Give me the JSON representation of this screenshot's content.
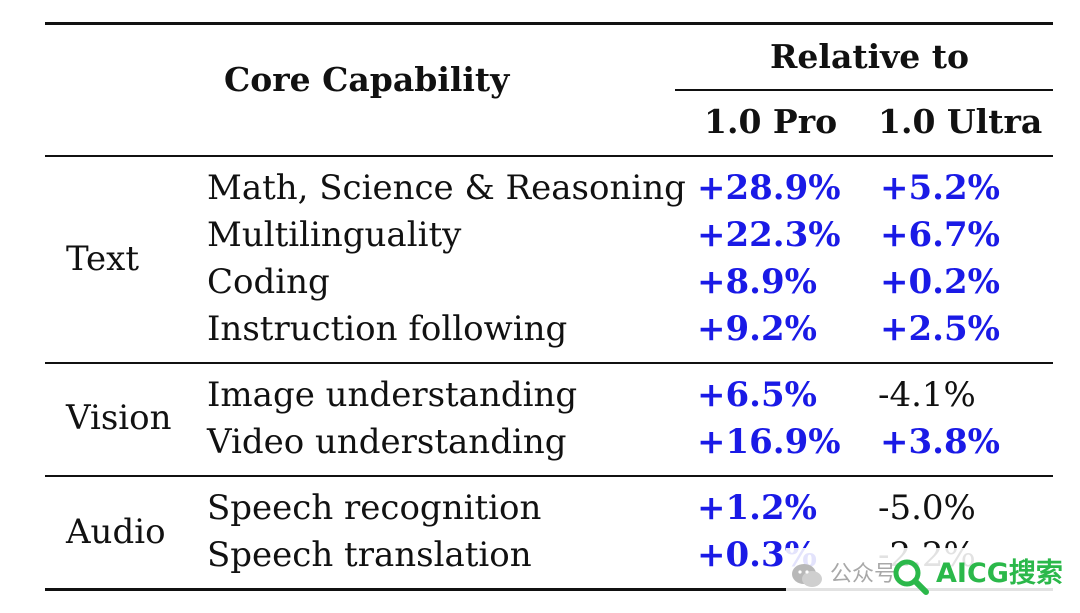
{
  "table": {
    "header": {
      "core": "Core Capability",
      "relative": "Relative to",
      "col_pro": "1.0 Pro",
      "col_ultra": "1.0 Ultra"
    },
    "groups": [
      {
        "category": "Text",
        "rows": [
          {
            "capability": "Math, Science & Reasoning",
            "pro": "+28.9%",
            "ultra": "+5.2%"
          },
          {
            "capability": "Multilinguality",
            "pro": "+22.3%",
            "ultra": "+6.7%"
          },
          {
            "capability": "Coding",
            "pro": "+8.9%",
            "ultra": "+0.2%"
          },
          {
            "capability": "Instruction following",
            "pro": "+9.2%",
            "ultra": "+2.5%"
          }
        ]
      },
      {
        "category": "Vision",
        "rows": [
          {
            "capability": "Image understanding",
            "pro": "+6.5%",
            "ultra": "-4.1%"
          },
          {
            "capability": "Video understanding",
            "pro": "+16.9%",
            "ultra": "+3.8%"
          }
        ]
      },
      {
        "category": "Audio",
        "rows": [
          {
            "capability": "Speech recognition",
            "pro": "+1.2%",
            "ultra": "-5.0%"
          },
          {
            "capability": "Speech translation",
            "pro": "+0.3%",
            "ultra": "-2.2%"
          }
        ]
      }
    ],
    "colors": {
      "positive": "#1a1ae6",
      "negative": "#111111"
    }
  },
  "watermark": {
    "prefix": "公众号",
    "brand": "AICG搜索",
    "icon": "search-icon"
  }
}
